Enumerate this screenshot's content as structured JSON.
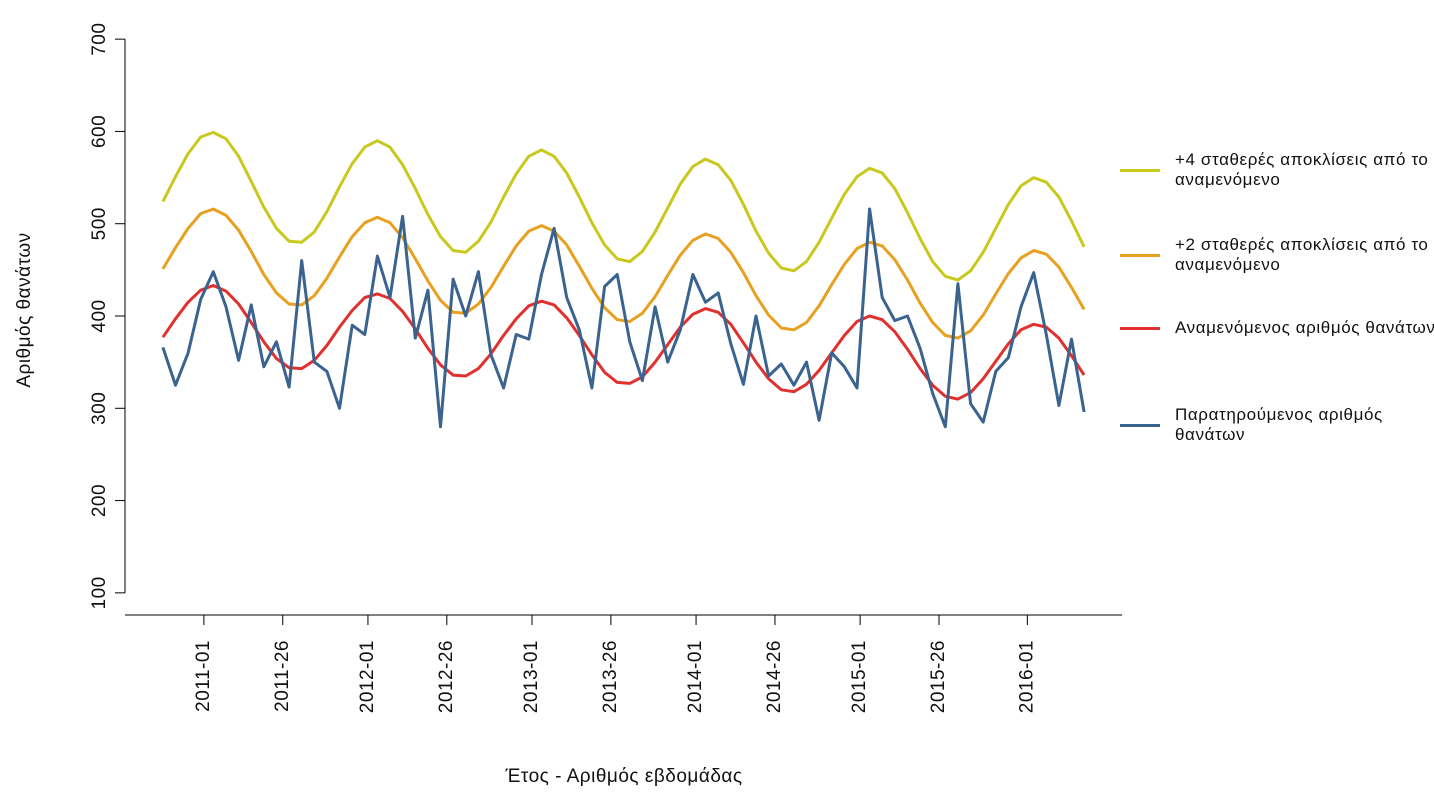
{
  "chart_data": {
    "type": "line",
    "y_label": "Αριθμός θανάτων",
    "x_label": "Έτος - Αριθμός εβδομάδας",
    "xlim": [
      -25,
      291
    ],
    "ylim": [
      76,
      724
    ],
    "yticks": [
      100,
      200,
      300,
      400,
      500,
      600,
      700
    ],
    "xticks": [
      {
        "value": 0,
        "label": "2011-01"
      },
      {
        "value": 25,
        "label": "2011-26"
      },
      {
        "value": 52,
        "label": "2012-01"
      },
      {
        "value": 77,
        "label": "2012-26"
      },
      {
        "value": 104,
        "label": "2013-01"
      },
      {
        "value": 129,
        "label": "2013-26"
      },
      {
        "value": 156,
        "label": "2014-01"
      },
      {
        "value": 181,
        "label": "2014-26"
      },
      {
        "value": 208,
        "label": "2015-01"
      },
      {
        "value": 233,
        "label": "2015-26"
      },
      {
        "value": 261,
        "label": "2016-01"
      }
    ],
    "x": [
      -13,
      -9,
      -5,
      -1,
      3,
      7,
      11,
      15,
      19,
      23,
      27,
      31,
      35,
      39,
      43,
      47,
      51,
      55,
      59,
      63,
      67,
      71,
      75,
      79,
      83,
      87,
      91,
      95,
      99,
      103,
      107,
      111,
      115,
      119,
      123,
      127,
      131,
      135,
      139,
      143,
      147,
      151,
      155,
      159,
      163,
      167,
      171,
      175,
      179,
      183,
      187,
      191,
      195,
      199,
      203,
      207,
      211,
      215,
      219,
      223,
      227,
      231,
      235,
      239,
      243,
      247,
      251,
      255,
      259,
      263,
      267,
      271,
      275,
      279
    ],
    "series": [
      {
        "name": "+4 σταθερές αποκλίσεις από το αναμενόμενο",
        "color": "#c9c81e",
        "values": [
          524,
          551,
          576,
          594,
          599,
          592,
          573,
          546,
          518,
          495,
          481,
          480,
          491,
          513,
          540,
          565,
          583,
          590,
          583,
          564,
          538,
          510,
          486,
          471,
          469,
          481,
          502,
          529,
          554,
          573,
          580,
          573,
          555,
          529,
          501,
          477,
          462,
          459,
          470,
          491,
          517,
          543,
          562,
          570,
          564,
          547,
          521,
          492,
          468,
          452,
          449,
          459,
          480,
          506,
          532,
          551,
          560,
          555,
          538,
          512,
          484,
          459,
          443,
          439,
          449,
          469,
          495,
          521,
          541,
          550,
          545,
          529,
          503,
          475
        ]
      },
      {
        "name": "+2 σταθερές αποκλίσεις από το αναμενόμενο",
        "color": "#e8a020",
        "values": [
          451,
          474,
          495,
          511,
          516,
          509,
          493,
          470,
          445,
          425,
          413,
          412,
          422,
          441,
          464,
          486,
          501,
          507,
          501,
          485,
          462,
          438,
          417,
          404,
          403,
          413,
          431,
          454,
          476,
          492,
          498,
          492,
          477,
          454,
          430,
          409,
          396,
          394,
          403,
          421,
          444,
          466,
          482,
          489,
          484,
          469,
          447,
          422,
          401,
          387,
          385,
          393,
          411,
          434,
          456,
          473,
          480,
          476,
          461,
          439,
          414,
          393,
          379,
          376,
          384,
          401,
          424,
          446,
          463,
          471,
          467,
          453,
          431,
          407
        ]
      },
      {
        "name": "Αναμενόμενος αριθμός θανάτων",
        "color": "#e0312f",
        "values": [
          377,
          397,
          415,
          428,
          433,
          427,
          413,
          393,
          372,
          354,
          344,
          343,
          352,
          368,
          388,
          406,
          420,
          424,
          419,
          405,
          386,
          365,
          347,
          336,
          335,
          343,
          359,
          379,
          397,
          411,
          416,
          412,
          398,
          379,
          358,
          339,
          328,
          327,
          334,
          350,
          369,
          388,
          402,
          408,
          404,
          391,
          371,
          350,
          332,
          320,
          318,
          326,
          341,
          360,
          379,
          394,
          400,
          396,
          383,
          364,
          343,
          325,
          313,
          310,
          317,
          332,
          351,
          370,
          385,
          391,
          388,
          376,
          357,
          336
        ]
      },
      {
        "name": "Παρατηρούμενος αριθμός θανάτων",
        "color": "#3a638f",
        "values": [
          366,
          325,
          360,
          418,
          448,
          410,
          352,
          412,
          345,
          372,
          323,
          460,
          350,
          340,
          300,
          390,
          380,
          465,
          420,
          508,
          376,
          428,
          280,
          440,
          400,
          448,
          358,
          322,
          380,
          375,
          445,
          495,
          420,
          385,
          322,
          432,
          445,
          372,
          330,
          410,
          350,
          385,
          445,
          415,
          425,
          370,
          326,
          400,
          335,
          348,
          325,
          350,
          287,
          360,
          345,
          322,
          516,
          420,
          395,
          400,
          365,
          316,
          280,
          435,
          305,
          285,
          340,
          355,
          410,
          447,
          380,
          303,
          375,
          296
        ]
      }
    ]
  }
}
